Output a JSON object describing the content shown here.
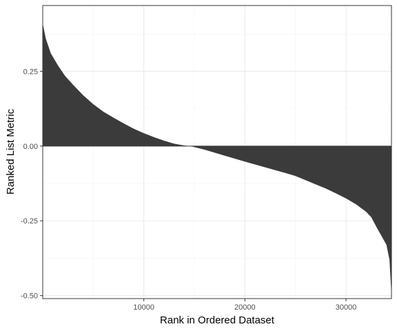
{
  "chart_data": {
    "type": "area",
    "xlabel": "Rank in Ordered Dataset",
    "ylabel": "Ranked List Metric",
    "xlim": [
      0,
      34500
    ],
    "ylim": [
      -0.51,
      0.47
    ],
    "x_ticks": [
      10000,
      20000,
      30000
    ],
    "x_tick_labels": [
      "10000",
      "20000",
      "30000"
    ],
    "y_ticks": [
      -0.5,
      -0.25,
      0.0,
      0.25
    ],
    "y_tick_labels": [
      "-0.50",
      "-0.25",
      "0.00",
      "0.25"
    ],
    "grid": true,
    "fill_color": "#3b3b3b",
    "series": [
      {
        "x": [
          0,
          300,
          800,
          1500,
          2200,
          3000,
          4000,
          5000,
          6000,
          7000,
          8000,
          9000,
          10000,
          11000,
          12000,
          13000,
          14000,
          14600,
          16000,
          18000,
          20000,
          22000,
          24000,
          25000,
          26000,
          27000,
          28000,
          29000,
          30000,
          31000,
          32000,
          32500,
          33000,
          33500,
          34000,
          34300,
          34500
        ],
        "y": [
          0.41,
          0.36,
          0.31,
          0.27,
          0.235,
          0.205,
          0.17,
          0.14,
          0.115,
          0.095,
          0.076,
          0.058,
          0.043,
          0.03,
          0.018,
          0.008,
          0.002,
          0.0,
          -0.012,
          -0.032,
          -0.052,
          -0.071,
          -0.09,
          -0.1,
          -0.114,
          -0.128,
          -0.142,
          -0.158,
          -0.175,
          -0.195,
          -0.22,
          -0.238,
          -0.27,
          -0.3,
          -0.33,
          -0.38,
          -0.5
        ]
      }
    ]
  }
}
